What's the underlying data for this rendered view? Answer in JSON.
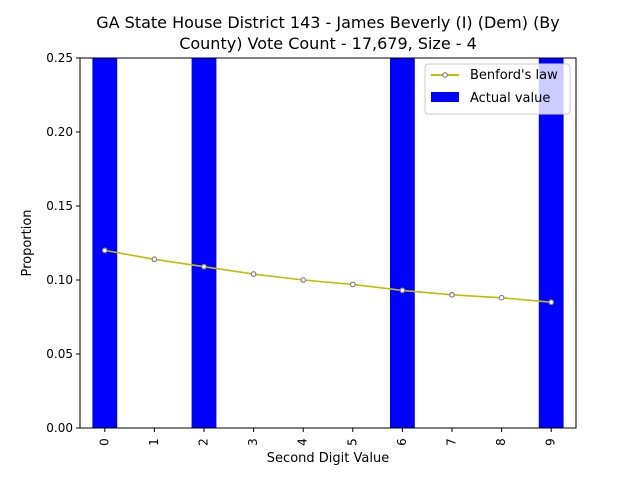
{
  "chart_data": {
    "type": "bar",
    "title_lines": [
      "GA State House District 143 - James Beverly (I) (Dem) (By",
      "County) Vote Count - 17,679, Size - 4"
    ],
    "xlabel": "Second Digit Value",
    "ylabel": "Proportion",
    "categories": [
      "0",
      "1",
      "2",
      "3",
      "4",
      "5",
      "6",
      "7",
      "8",
      "9"
    ],
    "ylim": [
      0,
      0.25
    ],
    "yticks": [
      "0.00",
      "0.05",
      "0.10",
      "0.15",
      "0.20",
      "0.25"
    ],
    "ytick_values": [
      0,
      0.05,
      0.1,
      0.15,
      0.2,
      0.25
    ],
    "grid": false,
    "legend_position": "top-right",
    "series": [
      {
        "name": "Actual value",
        "kind": "bar",
        "color": "#0000ff",
        "values": [
          0.25,
          0,
          0.25,
          0,
          0,
          0,
          0.25,
          0,
          0,
          0.25
        ]
      },
      {
        "name": "Benford's law",
        "kind": "line",
        "color": "#bfbf00",
        "marker_color": "#808080",
        "values": [
          0.12,
          0.114,
          0.109,
          0.104,
          0.1,
          0.097,
          0.093,
          0.09,
          0.088,
          0.085
        ]
      }
    ],
    "legend": [
      {
        "label": "Benford's law",
        "kind": "line"
      },
      {
        "label": "Actual value",
        "kind": "bar"
      }
    ]
  }
}
